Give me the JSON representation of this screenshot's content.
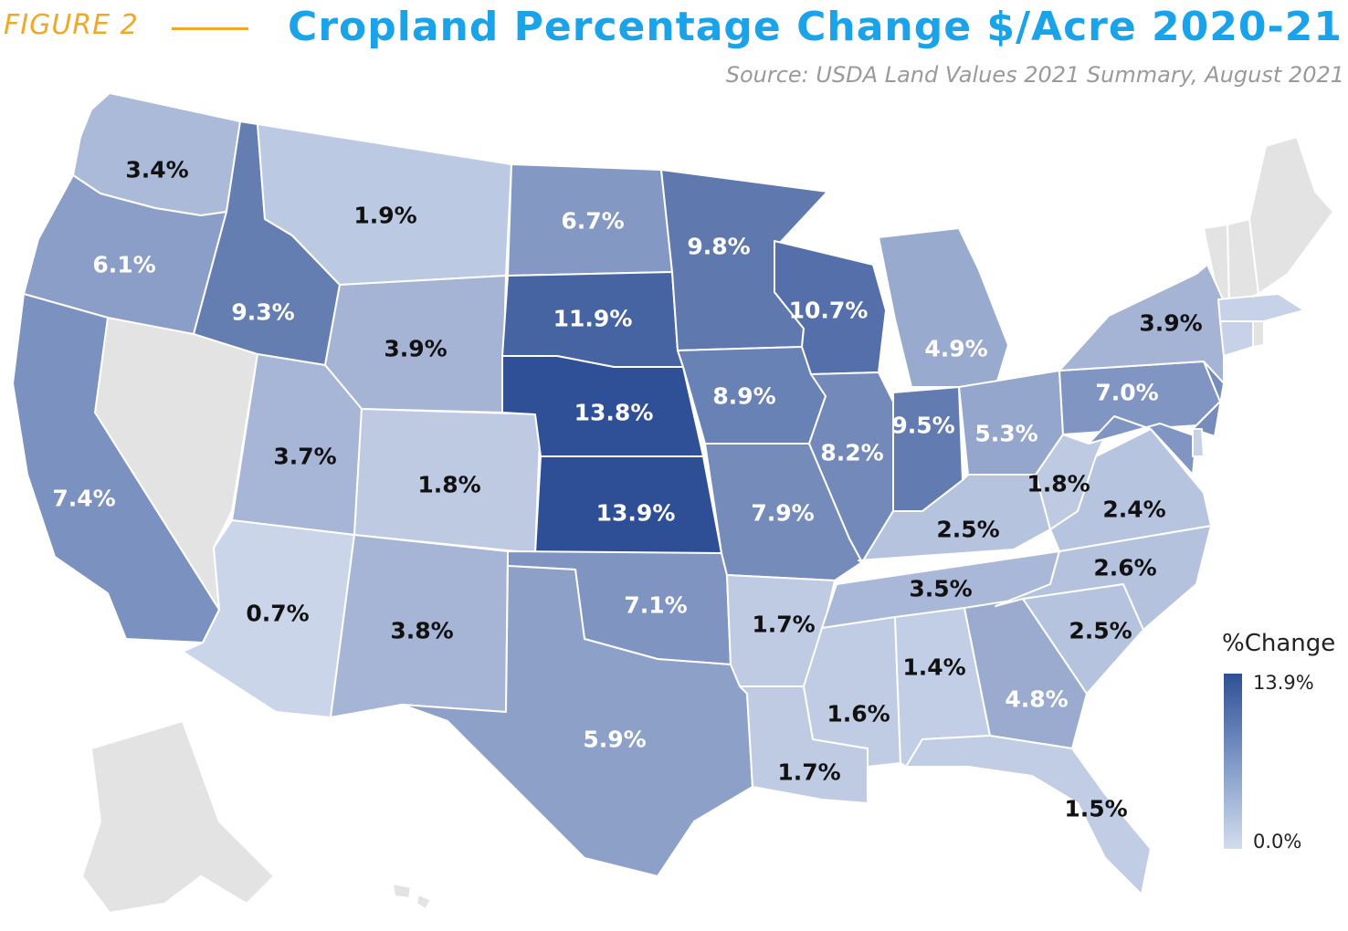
{
  "header": {
    "figure_label": "FIGURE 2",
    "title": "Cropland Percentage Change $/Acre 2020-21",
    "source": "Source: USDA Land Values 2021 Summary, August 2021"
  },
  "legend": {
    "title": "%Change",
    "max_label": "13.9%",
    "min_label": "0.0%",
    "color_max": "#2e4f95",
    "color_min": "#d3dcee"
  },
  "no_data_color": "#e3e3e3",
  "states": [
    {
      "code": "WA",
      "label": "3.4%",
      "value": 3.4
    },
    {
      "code": "OR",
      "label": "6.1%",
      "value": 6.1
    },
    {
      "code": "CA",
      "label": "7.4%",
      "value": 7.4
    },
    {
      "code": "ID",
      "label": "9.3%",
      "value": 9.3
    },
    {
      "code": "MT",
      "label": "1.9%",
      "value": 1.9
    },
    {
      "code": "WY",
      "label": "3.9%",
      "value": 3.9
    },
    {
      "code": "UT",
      "label": "3.7%",
      "value": 3.7
    },
    {
      "code": "CO",
      "label": "1.8%",
      "value": 1.8
    },
    {
      "code": "AZ",
      "label": "0.7%",
      "value": 0.7
    },
    {
      "code": "NM",
      "label": "3.8%",
      "value": 3.8
    },
    {
      "code": "ND",
      "label": "6.7%",
      "value": 6.7
    },
    {
      "code": "SD",
      "label": "11.9%",
      "value": 11.9
    },
    {
      "code": "NE",
      "label": "13.8%",
      "value": 13.8
    },
    {
      "code": "KS",
      "label": "13.9%",
      "value": 13.9
    },
    {
      "code": "OK",
      "label": "7.1%",
      "value": 7.1
    },
    {
      "code": "TX",
      "label": "5.9%",
      "value": 5.9
    },
    {
      "code": "MN",
      "label": "9.8%",
      "value": 9.8
    },
    {
      "code": "IA",
      "label": "8.9%",
      "value": 8.9
    },
    {
      "code": "MO",
      "label": "7.9%",
      "value": 7.9
    },
    {
      "code": "AR",
      "label": "1.7%",
      "value": 1.7
    },
    {
      "code": "LA",
      "label": "1.7%",
      "value": 1.7
    },
    {
      "code": "WI",
      "label": "10.7%",
      "value": 10.7
    },
    {
      "code": "IL",
      "label": "8.2%",
      "value": 8.2
    },
    {
      "code": "MI",
      "label": "4.9%",
      "value": 4.9
    },
    {
      "code": "IN",
      "label": "9.5%",
      "value": 9.5
    },
    {
      "code": "OH",
      "label": "5.3%",
      "value": 5.3
    },
    {
      "code": "KY",
      "label": "2.5%",
      "value": 2.5
    },
    {
      "code": "TN",
      "label": "3.5%",
      "value": 3.5
    },
    {
      "code": "MS",
      "label": "1.6%",
      "value": 1.6
    },
    {
      "code": "AL",
      "label": "1.4%",
      "value": 1.4
    },
    {
      "code": "GA",
      "label": "4.8%",
      "value": 4.8
    },
    {
      "code": "FL",
      "label": "1.5%",
      "value": 1.5
    },
    {
      "code": "SC",
      "label": "2.5%",
      "value": 2.5
    },
    {
      "code": "NC",
      "label": "2.6%",
      "value": 2.6
    },
    {
      "code": "VA",
      "label": "2.4%",
      "value": 2.4
    },
    {
      "code": "WV",
      "label": "1.8%",
      "value": 1.8
    },
    {
      "code": "PA",
      "label": "7.0%",
      "value": 7.0
    },
    {
      "code": "NY",
      "label": "3.9%",
      "value": 3.9
    },
    {
      "code": "NJ",
      "label": "",
      "value": 7.8
    },
    {
      "code": "MD",
      "label": "",
      "value": 7.0
    },
    {
      "code": "DE",
      "label": "",
      "value": 1.0
    },
    {
      "code": "CT",
      "label": "",
      "value": 1.0
    },
    {
      "code": "MA",
      "label": "",
      "value": 1.0
    },
    {
      "code": "NV",
      "label": "",
      "value": null
    },
    {
      "code": "VT",
      "label": "",
      "value": null
    },
    {
      "code": "NH",
      "label": "",
      "value": null
    },
    {
      "code": "ME",
      "label": "",
      "value": null
    },
    {
      "code": "RI",
      "label": "",
      "value": null
    },
    {
      "code": "AK",
      "label": "",
      "value": null
    },
    {
      "code": "HI",
      "label": "",
      "value": null
    }
  ]
}
